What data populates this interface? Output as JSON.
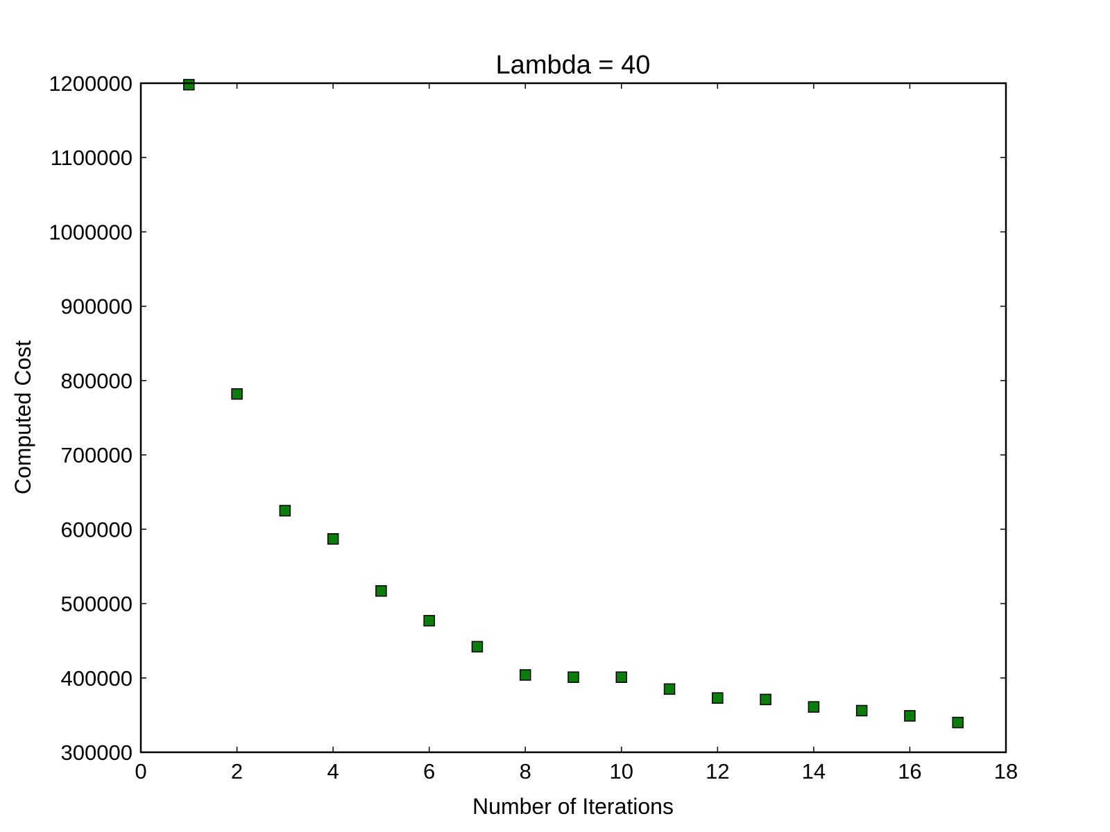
{
  "chart_data": {
    "type": "scatter",
    "title": "Lambda = 40",
    "xlabel": "Number of Iterations",
    "ylabel": "Computed Cost",
    "xlim": [
      0,
      18
    ],
    "ylim": [
      300000,
      1200000
    ],
    "x_ticks": [
      0,
      2,
      4,
      6,
      8,
      10,
      12,
      14,
      16,
      18
    ],
    "x_tick_labels": [
      "0",
      "2",
      "4",
      "6",
      "8",
      "10",
      "12",
      "14",
      "16",
      "18"
    ],
    "y_ticks": [
      300000,
      400000,
      500000,
      600000,
      700000,
      800000,
      900000,
      1000000,
      1100000,
      1200000
    ],
    "y_tick_labels": [
      "300000",
      "400000",
      "500000",
      "600000",
      "700000",
      "800000",
      "900000",
      "1000000",
      "1100000",
      "1200000"
    ],
    "grid": false,
    "legend": "none",
    "marker": "square",
    "marker_color": "#0a7d0a",
    "series": [
      {
        "x": [
          1,
          2,
          3,
          4,
          5,
          6,
          7,
          8,
          9,
          10,
          11,
          12,
          13,
          14,
          15,
          16,
          17
        ],
        "values": [
          1198000,
          782000,
          625000,
          587000,
          517000,
          477000,
          442000,
          404000,
          401000,
          401000,
          385000,
          373000,
          371000,
          361000,
          356000,
          349000,
          340000
        ]
      }
    ]
  }
}
